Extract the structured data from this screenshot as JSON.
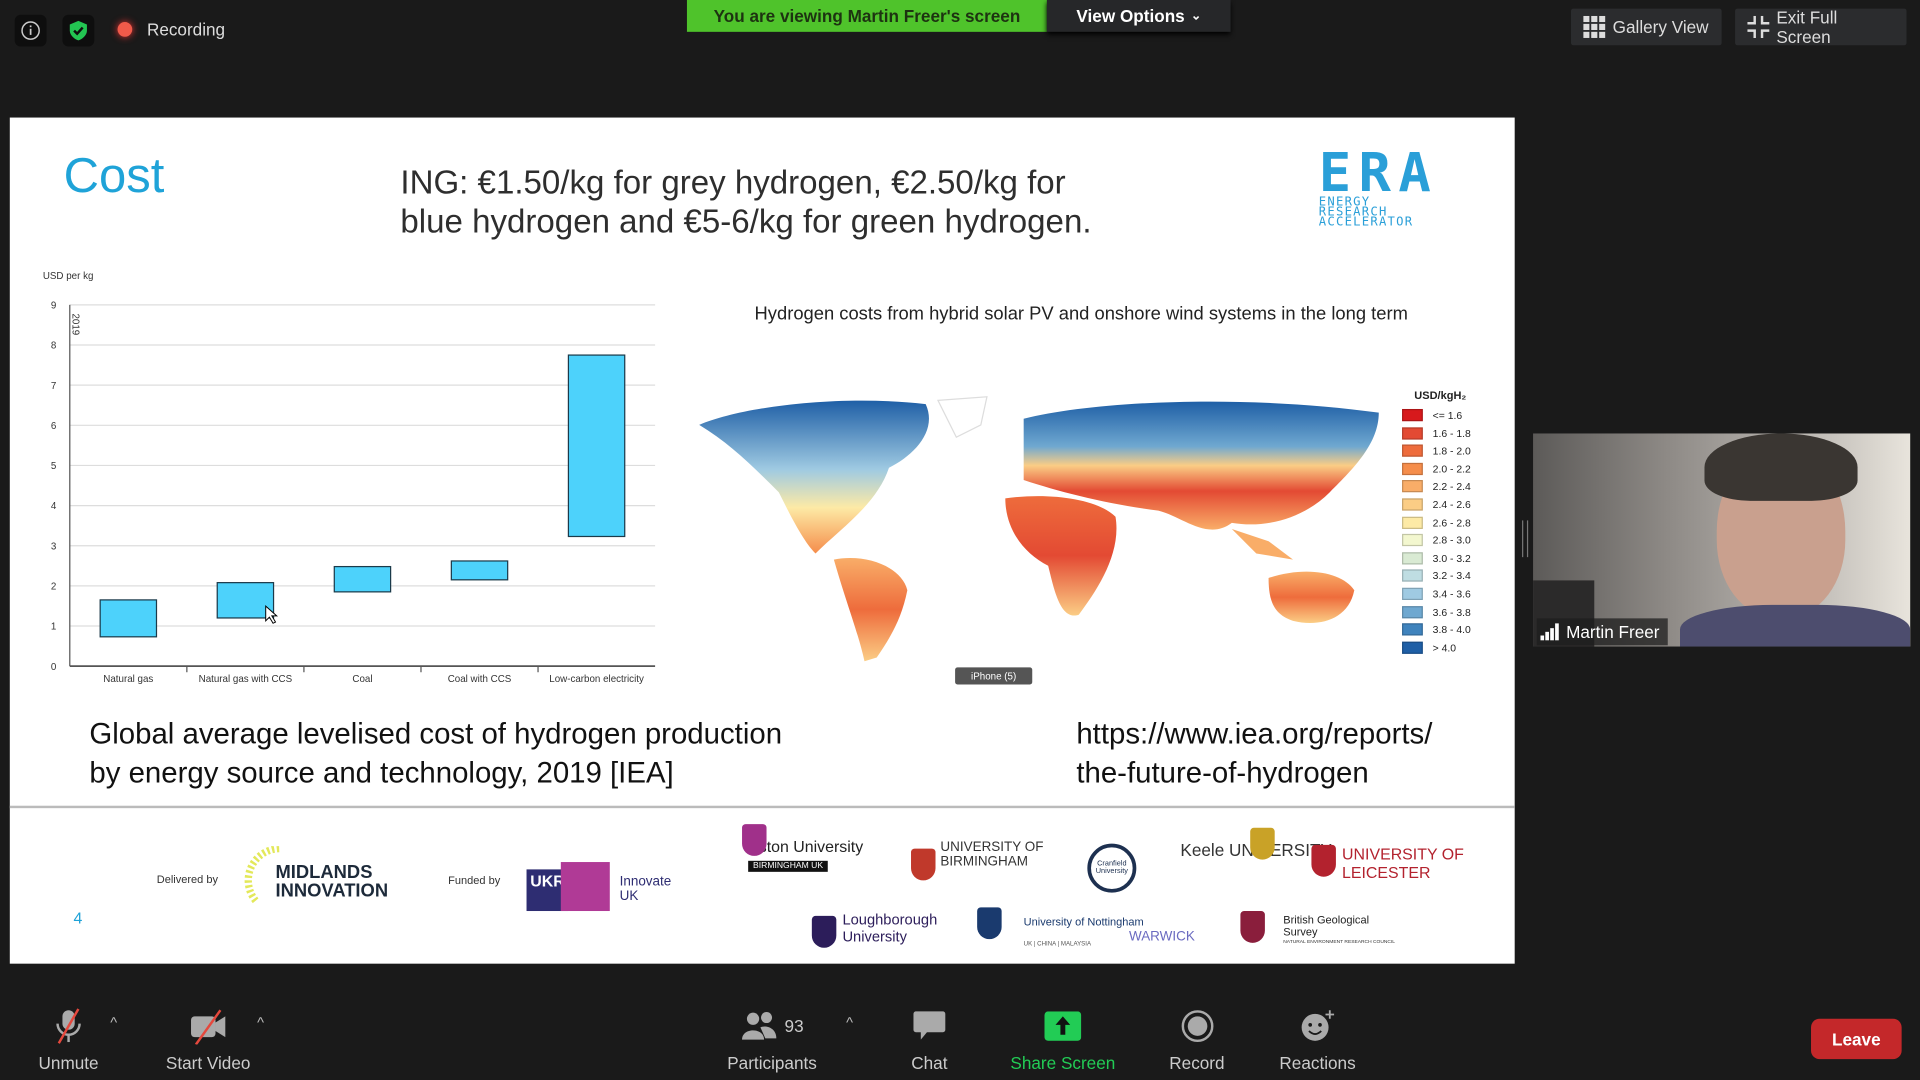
{
  "top_bar": {
    "recording_label": "Recording",
    "viewing_banner": "You are viewing Martin Freer's screen",
    "view_options_label": "View Options",
    "gallery_view_label": "Gallery View",
    "exit_full_screen_label": "Exit Full Screen"
  },
  "slide": {
    "title": "Cost",
    "headline_line1": "ING: €1.50/kg for grey hydrogen, €2.50/kg for",
    "headline_line2": "blue hydrogen and €5-6/kg for green hydrogen.",
    "era_logo": {
      "letters": "ERA",
      "line1": "ENERGY",
      "line2": "RESEARCH",
      "line3": "ACCELERATOR"
    },
    "map_title": "Hydrogen costs from hybrid solar PV and onshore wind systems in the long term",
    "map_legend": {
      "title": "USD/kgH₂",
      "items": [
        {
          "label": "<= 1.6",
          "color": "#d7191c"
        },
        {
          "label": "1.6 - 1.8",
          "color": "#e34a33"
        },
        {
          "label": "1.8 - 2.0",
          "color": "#ee6c3c"
        },
        {
          "label": "2.0 - 2.2",
          "color": "#f58d4b"
        },
        {
          "label": "2.2 - 2.4",
          "color": "#f9ad68"
        },
        {
          "label": "2.4 - 2.6",
          "color": "#fbcd85"
        },
        {
          "label": "2.6 - 2.8",
          "color": "#fdeaa6"
        },
        {
          "label": "2.8 - 3.0",
          "color": "#f3f7cf"
        },
        {
          "label": "3.0 - 3.2",
          "color": "#d9ead3"
        },
        {
          "label": "3.2 - 3.4",
          "color": "#bfdde2"
        },
        {
          "label": "3.4 - 3.6",
          "color": "#9fcae2"
        },
        {
          "label": "3.6 - 3.8",
          "color": "#6fa8d0"
        },
        {
          "label": "3.8 - 4.0",
          "color": "#3f83bd"
        },
        {
          "label": "> 4.0",
          "color": "#1f5fa6"
        }
      ]
    },
    "tooltip": "iPhone (5)",
    "caption_line1": "Global average levelised cost of hydrogen production",
    "caption_line2": "by energy source and technology, 2019 [IEA]",
    "url_line1": "https://www.iea.org/reports/",
    "url_line2": "the-future-of-hydrogen",
    "page_number": "4",
    "footer": {
      "delivered_by": "Delivered by",
      "midlands_innovation": "MIDLANDS INNOVATION",
      "funded_by": "Funded by",
      "innovate_uk": "Innovate UK",
      "ukri": "UKRI",
      "partners": [
        "Aston University",
        "BIRMINGHAM UK",
        "UNIVERSITY OF BIRMINGHAM",
        "Cranfield University",
        "Keele UNIVERSITY",
        "UNIVERSITY OF LEICESTER",
        "Loughborough University",
        "University of Nottingham",
        "UK | CHINA | MALAYSIA",
        "WARWICK",
        "British Geological Survey",
        "NATURAL ENVIRONMENT RESEARCH COUNCIL"
      ]
    }
  },
  "chart_data": {
    "type": "bar",
    "subtype": "floating-range",
    "ylabel": "USD per kg",
    "annotation": "2019",
    "ylim": [
      0,
      9
    ],
    "yticks": [
      "0",
      "1",
      "2",
      "3",
      "4",
      "5",
      "6",
      "7",
      "8",
      "9"
    ],
    "grid": true,
    "bar_color": "#4dd2fb",
    "categories": [
      "Natural gas",
      "Natural gas with CCS",
      "Coal",
      "Coal with CCS",
      "Low-carbon electricity"
    ],
    "ranges": [
      [
        0.73,
        1.65
      ],
      [
        1.2,
        2.08
      ],
      [
        1.85,
        2.48
      ],
      [
        2.15,
        2.62
      ],
      [
        3.23,
        7.75
      ]
    ]
  },
  "video_tile": {
    "name": "Martin Freer"
  },
  "toolbar": {
    "unmute": "Unmute",
    "start_video": "Start Video",
    "participants": "Participants",
    "participant_count": "93",
    "chat": "Chat",
    "share_screen": "Share Screen",
    "record": "Record",
    "reactions": "Reactions",
    "leave": "Leave"
  },
  "colors": {
    "share_green": "#22cc55",
    "banner_green": "#4fc32b",
    "leave_red": "#c4282a",
    "title_blue": "#1fa3d8"
  }
}
